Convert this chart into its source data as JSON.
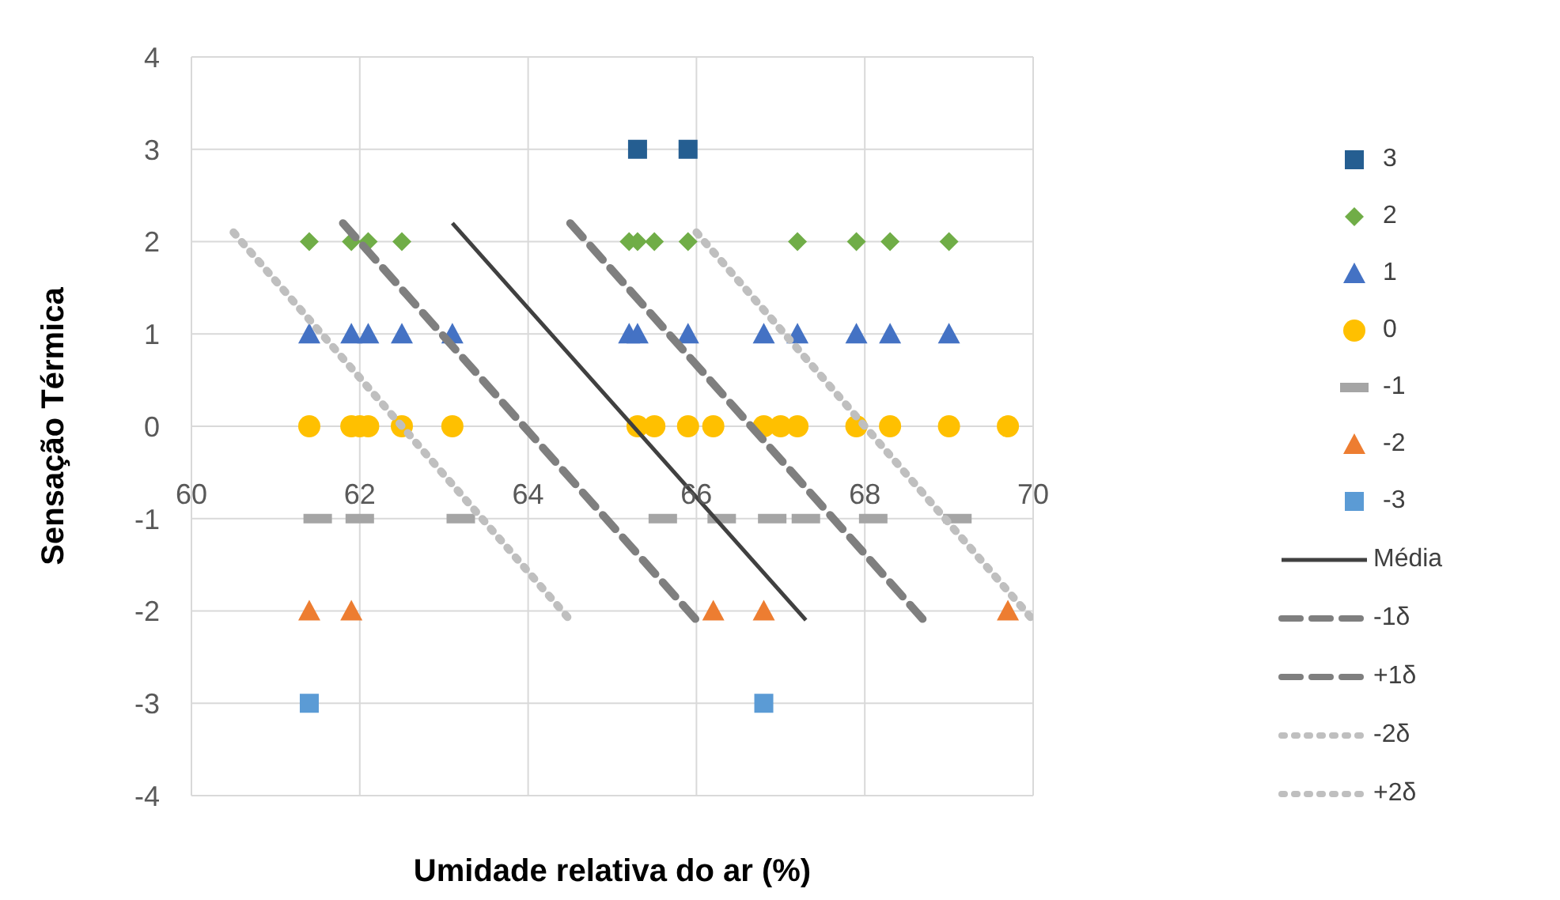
{
  "chart_data": {
    "type": "scatter",
    "xlabel": "Umidade relativa do ar (%)",
    "ylabel": "Sensação Térmica",
    "xlim": [
      60,
      70
    ],
    "xticks": [
      60,
      62,
      64,
      66,
      68,
      70
    ],
    "ylim": [
      -4,
      4
    ],
    "yticks": [
      -4,
      -3,
      -2,
      -1,
      0,
      1,
      2,
      3,
      4
    ],
    "grid": true,
    "legend": "right",
    "series": [
      {
        "name": "3",
        "color": "#255e91",
        "marker": "square",
        "x": [
          65.3,
          65.9
        ],
        "values": [
          3,
          3
        ]
      },
      {
        "name": "2",
        "color": "#70ad47",
        "marker": "diamond",
        "x": [
          61.4,
          61.9,
          62.1,
          62.5,
          65.2,
          65.3,
          65.5,
          65.9,
          67.2,
          67.9,
          68.3,
          69.0
        ],
        "values": [
          2,
          2,
          2,
          2,
          2,
          2,
          2,
          2,
          2,
          2,
          2,
          2
        ]
      },
      {
        "name": "1",
        "color": "#4472c4",
        "marker": "triangle",
        "x": [
          61.4,
          61.9,
          62.1,
          62.5,
          63.1,
          65.2,
          65.3,
          65.9,
          66.8,
          67.2,
          67.9,
          68.3,
          69.0
        ],
        "values": [
          1,
          1,
          1,
          1,
          1,
          1,
          1,
          1,
          1,
          1,
          1,
          1,
          1
        ]
      },
      {
        "name": "0",
        "color": "#ffc000",
        "marker": "circle",
        "x": [
          61.4,
          61.9,
          62.0,
          62.1,
          62.5,
          63.1,
          65.3,
          65.5,
          65.9,
          66.2,
          66.8,
          67.0,
          67.2,
          67.9,
          68.3,
          69.0,
          69.7
        ],
        "values": [
          0,
          0,
          0,
          0,
          0,
          0,
          0,
          0,
          0,
          0,
          0,
          0,
          0,
          0,
          0,
          0,
          0
        ]
      },
      {
        "name": "-1",
        "color": "#a5a5a5",
        "x": [
          61.5,
          62.0,
          63.2,
          65.6,
          66.3,
          66.9,
          67.3,
          68.1,
          69.1
        ],
        "values": [
          -1,
          -1,
          -1,
          -1,
          -1,
          -1,
          -1,
          -1,
          -1
        ]
      },
      {
        "name": "-2",
        "color": "#ed7d31",
        "marker": "triangle",
        "x": [
          61.4,
          61.9,
          66.2,
          66.8,
          69.7
        ],
        "values": [
          -2,
          -2,
          -2,
          -2,
          -2
        ]
      },
      {
        "name": "-3",
        "color": "#5b9bd5",
        "marker": "square",
        "x": [
          61.4,
          66.8
        ],
        "values": [
          -3,
          -3
        ]
      },
      {
        "name": "Média",
        "type": "line",
        "color": "#404040",
        "line_style": "solid",
        "marker": "none",
        "x": [
          63.1,
          67.3
        ],
        "values": [
          2.2,
          -2.1
        ]
      },
      {
        "name": "-1δ",
        "type": "line",
        "color": "#7f7f7f",
        "line_style": "dashed",
        "marker": "none",
        "x": [
          61.8,
          66.0
        ],
        "values": [
          2.2,
          -2.1
        ]
      },
      {
        "name": "+1δ",
        "type": "line",
        "color": "#7f7f7f",
        "line_style": "dashed",
        "marker": "none",
        "x": [
          64.5,
          68.7
        ],
        "values": [
          2.2,
          -2.1
        ]
      },
      {
        "name": "-2δ",
        "type": "line",
        "color": "#bfbfbf",
        "line_style": "dotted",
        "marker": "none",
        "x": [
          60.5,
          64.5
        ],
        "values": [
          2.1,
          -2.1
        ]
      },
      {
        "name": "+2δ",
        "type": "line",
        "color": "#bfbfbf",
        "line_style": "dotted",
        "marker": "none",
        "x": [
          66.0,
          70.0
        ],
        "values": [
          2.1,
          -2.1
        ]
      }
    ]
  }
}
